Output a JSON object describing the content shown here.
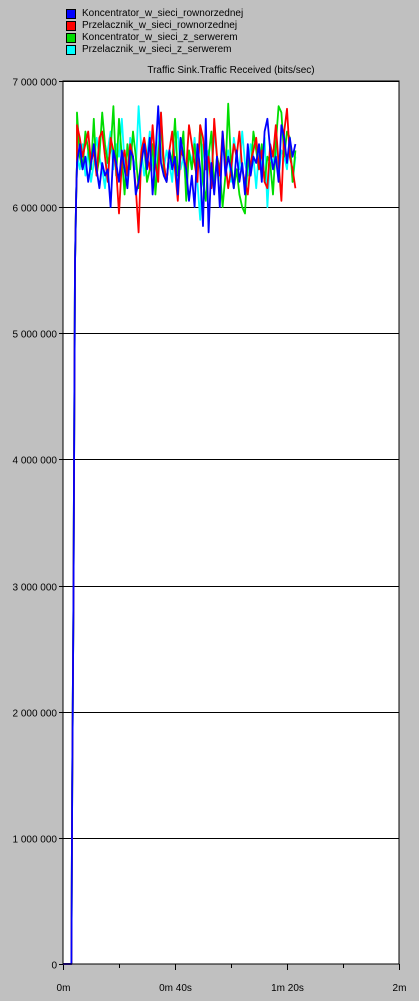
{
  "chart_data": {
    "type": "line",
    "title": "Traffic Sink.Traffic Received (bits/sec)",
    "xlabel": "",
    "ylabel": "",
    "xlim": [
      0,
      120
    ],
    "ylim": [
      0,
      7000000
    ],
    "x_ticks": [
      {
        "value": 0,
        "label": "0m"
      },
      {
        "value": 40,
        "label": "0m 40s"
      },
      {
        "value": 80,
        "label": "1m 20s"
      },
      {
        "value": 120,
        "label": "2m"
      }
    ],
    "x_minor_ticks": [
      20,
      60,
      100
    ],
    "y_ticks": [
      {
        "value": 0,
        "label": "0"
      },
      {
        "value": 1000000,
        "label": "1 000 000"
      },
      {
        "value": 2000000,
        "label": "2 000 000"
      },
      {
        "value": 3000000,
        "label": "3 000 000"
      },
      {
        "value": 4000000,
        "label": "4 000 000"
      },
      {
        "value": 5000000,
        "label": "5 000 000"
      },
      {
        "value": 6000000,
        "label": "6 000 000"
      },
      {
        "value": 7000000,
        "label": "7 000 000"
      }
    ],
    "grid": true,
    "legend_position": "top-left",
    "ramp": {
      "x": [
        0,
        3,
        3.3,
        3.7,
        4,
        4.3,
        4.7,
        5
      ],
      "y": [
        0,
        0,
        1400000,
        2800000,
        4200000,
        5550000,
        6100000,
        6350000
      ]
    },
    "series": [
      {
        "name": "Koncentrator_w_sieci_rownorzednej",
        "color": "#0000ff",
        "x_start": 5,
        "x_step": 1,
        "values": [
          6350000,
          6500000,
          6300000,
          6400000,
          6200000,
          6350000,
          6500000,
          6300000,
          6150000,
          6350000,
          6250000,
          6300000,
          6000000,
          6450000,
          6350000,
          6200000,
          6450000,
          6300000,
          6150000,
          6450000,
          6400000,
          6100000,
          6200000,
          6350000,
          6500000,
          6300000,
          6550000,
          6100000,
          6400000,
          6800000,
          6350000,
          6250000,
          6200000,
          6450000,
          6300000,
          6400000,
          6100000,
          6550000,
          6400000,
          6300000,
          6050000,
          6250000,
          6000000,
          6500000,
          6300000,
          5850000,
          6700000,
          5800000,
          6350000,
          6100000,
          6400000,
          6000000,
          6600000,
          6250000,
          6400000,
          6300000,
          6150000,
          6450000,
          6200000,
          6350000,
          6100000,
          6500000,
          6250000,
          6400000,
          6350000,
          6500000,
          6200000,
          6600000,
          6700000,
          6450000,
          6300000,
          6400000,
          6200000,
          6650000,
          6550000,
          6350000,
          6550000,
          6400000,
          6500000
        ]
      },
      {
        "name": "Przelacznik_w_sieci_rownorzednej",
        "color": "#ff0000",
        "x_start": 5,
        "x_step": 1,
        "values": [
          6650000,
          6550000,
          6400000,
          6500000,
          6600000,
          6350000,
          6450000,
          6250000,
          6550000,
          6600000,
          6400000,
          6200000,
          6550000,
          6450000,
          6300000,
          5950000,
          6350000,
          6450000,
          6250000,
          6500000,
          6400000,
          6150000,
          5800000,
          6450000,
          6550000,
          6400000,
          6300000,
          6650000,
          6350000,
          6200000,
          6750000,
          6350000,
          6200000,
          6450000,
          6600000,
          6300000,
          6050000,
          6450000,
          6400000,
          6300000,
          6650000,
          6500000,
          6350000,
          6200000,
          6650000,
          6550000,
          6300000,
          6400000,
          6150000,
          6700000,
          6400000,
          6250000,
          6600000,
          6350000,
          6150000,
          6300000,
          6500000,
          6400000,
          6600000,
          6300000,
          6200000,
          6100000,
          6350000,
          6450000,
          6550000,
          6300000,
          6450000,
          6200000,
          6150000,
          6500000,
          6400000,
          6650000,
          6350000,
          6050000,
          6600000,
          6780000,
          6400000,
          6300000,
          6150000
        ]
      },
      {
        "name": "Koncentrator_w_sieci_z_serwerem",
        "color": "#00dd00",
        "x_start": 5,
        "x_step": 1,
        "values": [
          6750000,
          6400000,
          6300000,
          6600000,
          6450000,
          6300000,
          6700000,
          6250000,
          6400000,
          6750000,
          6500000,
          6350000,
          6450000,
          6800000,
          6250000,
          6700000,
          6400000,
          6100000,
          6500000,
          6300000,
          6600000,
          6400000,
          6150000,
          6450000,
          6500000,
          6200000,
          6300000,
          6500000,
          6100000,
          6400000,
          6650000,
          6300000,
          6200000,
          6450000,
          6350000,
          6700000,
          6250000,
          6400000,
          6600000,
          6050000,
          6450000,
          6300000,
          6500000,
          6250000,
          6650000,
          6200000,
          6050000,
          6400000,
          6600000,
          6150000,
          6400000,
          6300000,
          6000000,
          6250000,
          6820000,
          6350000,
          6150000,
          6300000,
          6100000,
          6000000,
          5950000,
          6400000,
          6250000,
          6600000,
          6450000,
          6300000,
          6500000,
          6200000,
          6400000,
          6350000,
          6100000,
          6500000,
          6800000,
          6750000,
          6400000,
          6600000,
          6550000,
          6200000,
          6450000
        ]
      },
      {
        "name": "Przelacznik_w_sieci_z_serwerem",
        "color": "#00ffff",
        "x_start": 5,
        "x_step": 1,
        "values": [
          6400000,
          6300000,
          6500000,
          6250000,
          6450000,
          6200000,
          6350000,
          6550000,
          6400000,
          6300000,
          6150000,
          6450000,
          6600000,
          6300000,
          6500000,
          6400000,
          6700000,
          6350000,
          6200000,
          6550000,
          6400000,
          6300000,
          6800000,
          6450000,
          6250000,
          6400000,
          6600000,
          6350000,
          6200000,
          6500000,
          6750000,
          6300000,
          6450000,
          6350000,
          6200000,
          6500000,
          6600000,
          6300000,
          6400000,
          6150000,
          6450000,
          6350000,
          6550000,
          6200000,
          5900000,
          6500000,
          6300000,
          6450000,
          6250000,
          6600000,
          6400000,
          6300000,
          6500000,
          6350000,
          6450000,
          6200000,
          6550000,
          6400000,
          6300000,
          6600000,
          6350000,
          6250000,
          6500000,
          6400000,
          6150000,
          6450000,
          6300000,
          6550000,
          6000000,
          6400000,
          6350000,
          6500000,
          6250000,
          6450000,
          6400000,
          6300000,
          6550000,
          6200000,
          6400000
        ]
      }
    ]
  }
}
